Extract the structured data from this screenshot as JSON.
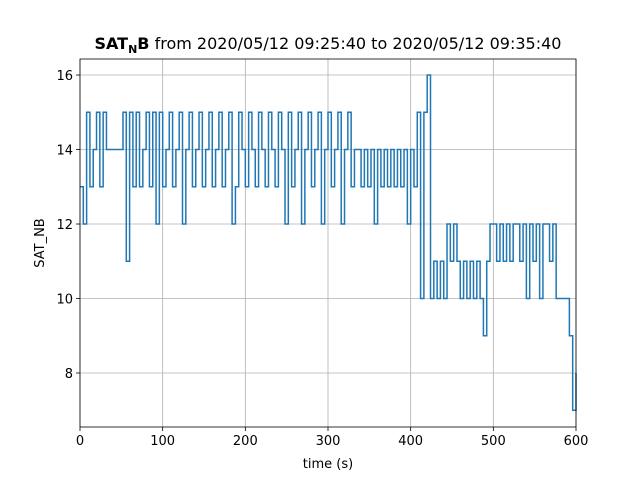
{
  "chart_data": {
    "type": "step",
    "title": [
      "SAT",
      "N",
      "B",
      "from 2020/05/12 09:25:40 to 2020/05/12 09:35:40"
    ],
    "xlabel": "time (s)",
    "ylabel": "SAT_NB",
    "xlim": [
      0,
      600
    ],
    "ylim": [
      6.55,
      16.43
    ],
    "xticks": [
      0,
      100,
      200,
      300,
      400,
      500,
      600
    ],
    "yticks": [
      8,
      10,
      12,
      14,
      16
    ],
    "grid": true,
    "series": [
      {
        "color": "#1f77b4",
        "x": [
          0,
          4,
          8,
          12,
          16,
          20,
          24,
          28,
          32,
          36,
          40,
          44,
          48,
          52,
          56,
          60,
          64,
          68,
          72,
          76,
          80,
          84,
          88,
          92,
          96,
          100,
          104,
          108,
          112,
          116,
          120,
          124,
          128,
          132,
          136,
          140,
          144,
          148,
          152,
          156,
          160,
          164,
          168,
          172,
          176,
          180,
          184,
          188,
          192,
          196,
          200,
          204,
          208,
          212,
          216,
          220,
          224,
          228,
          232,
          236,
          240,
          244,
          248,
          252,
          256,
          260,
          264,
          268,
          272,
          276,
          280,
          284,
          288,
          292,
          296,
          300,
          304,
          308,
          312,
          316,
          320,
          324,
          328,
          332,
          336,
          340,
          344,
          348,
          352,
          356,
          360,
          364,
          368,
          372,
          376,
          380,
          384,
          388,
          392,
          396,
          400,
          404,
          408,
          412,
          416,
          420,
          424,
          428,
          432,
          436,
          440,
          444,
          448,
          452,
          456,
          460,
          464,
          468,
          472,
          476,
          480,
          484,
          488,
          492,
          496,
          500,
          504,
          508,
          512,
          516,
          520,
          524,
          528,
          532,
          536,
          540,
          544,
          548,
          552,
          556,
          560,
          564,
          568,
          572,
          576,
          580,
          584,
          588,
          592,
          596,
          600
        ],
        "values": [
          13,
          12,
          15,
          13,
          14,
          15,
          13,
          15,
          14,
          14,
          14,
          14,
          14,
          15,
          11,
          15,
          13,
          15,
          13,
          14,
          15,
          13,
          15,
          12,
          15,
          13,
          14,
          15,
          13,
          14,
          15,
          12,
          14,
          15,
          13,
          14,
          15,
          13,
          14,
          15,
          13,
          14,
          15,
          13,
          14,
          15,
          12,
          13,
          15,
          14,
          13,
          15,
          14,
          13,
          15,
          14,
          13,
          15,
          14,
          13,
          15,
          14,
          12,
          15,
          13,
          14,
          15,
          12,
          14,
          15,
          13,
          14,
          15,
          12,
          14,
          15,
          13,
          14,
          15,
          12,
          14,
          15,
          13,
          14,
          14,
          13,
          14,
          13,
          14,
          12,
          14,
          13,
          14,
          13,
          14,
          13,
          14,
          13,
          14,
          12,
          14,
          13,
          15,
          10,
          15,
          16,
          10,
          11,
          10,
          11,
          10,
          12,
          11,
          12,
          11,
          10,
          11,
          10,
          11,
          10,
          11,
          10,
          9,
          11,
          12,
          12,
          11,
          12,
          11,
          12,
          11,
          12,
          12,
          11,
          12,
          10,
          12,
          11,
          12,
          10,
          12,
          12,
          11,
          12,
          10,
          10,
          10,
          10,
          9,
          7,
          8
        ]
      }
    ]
  }
}
